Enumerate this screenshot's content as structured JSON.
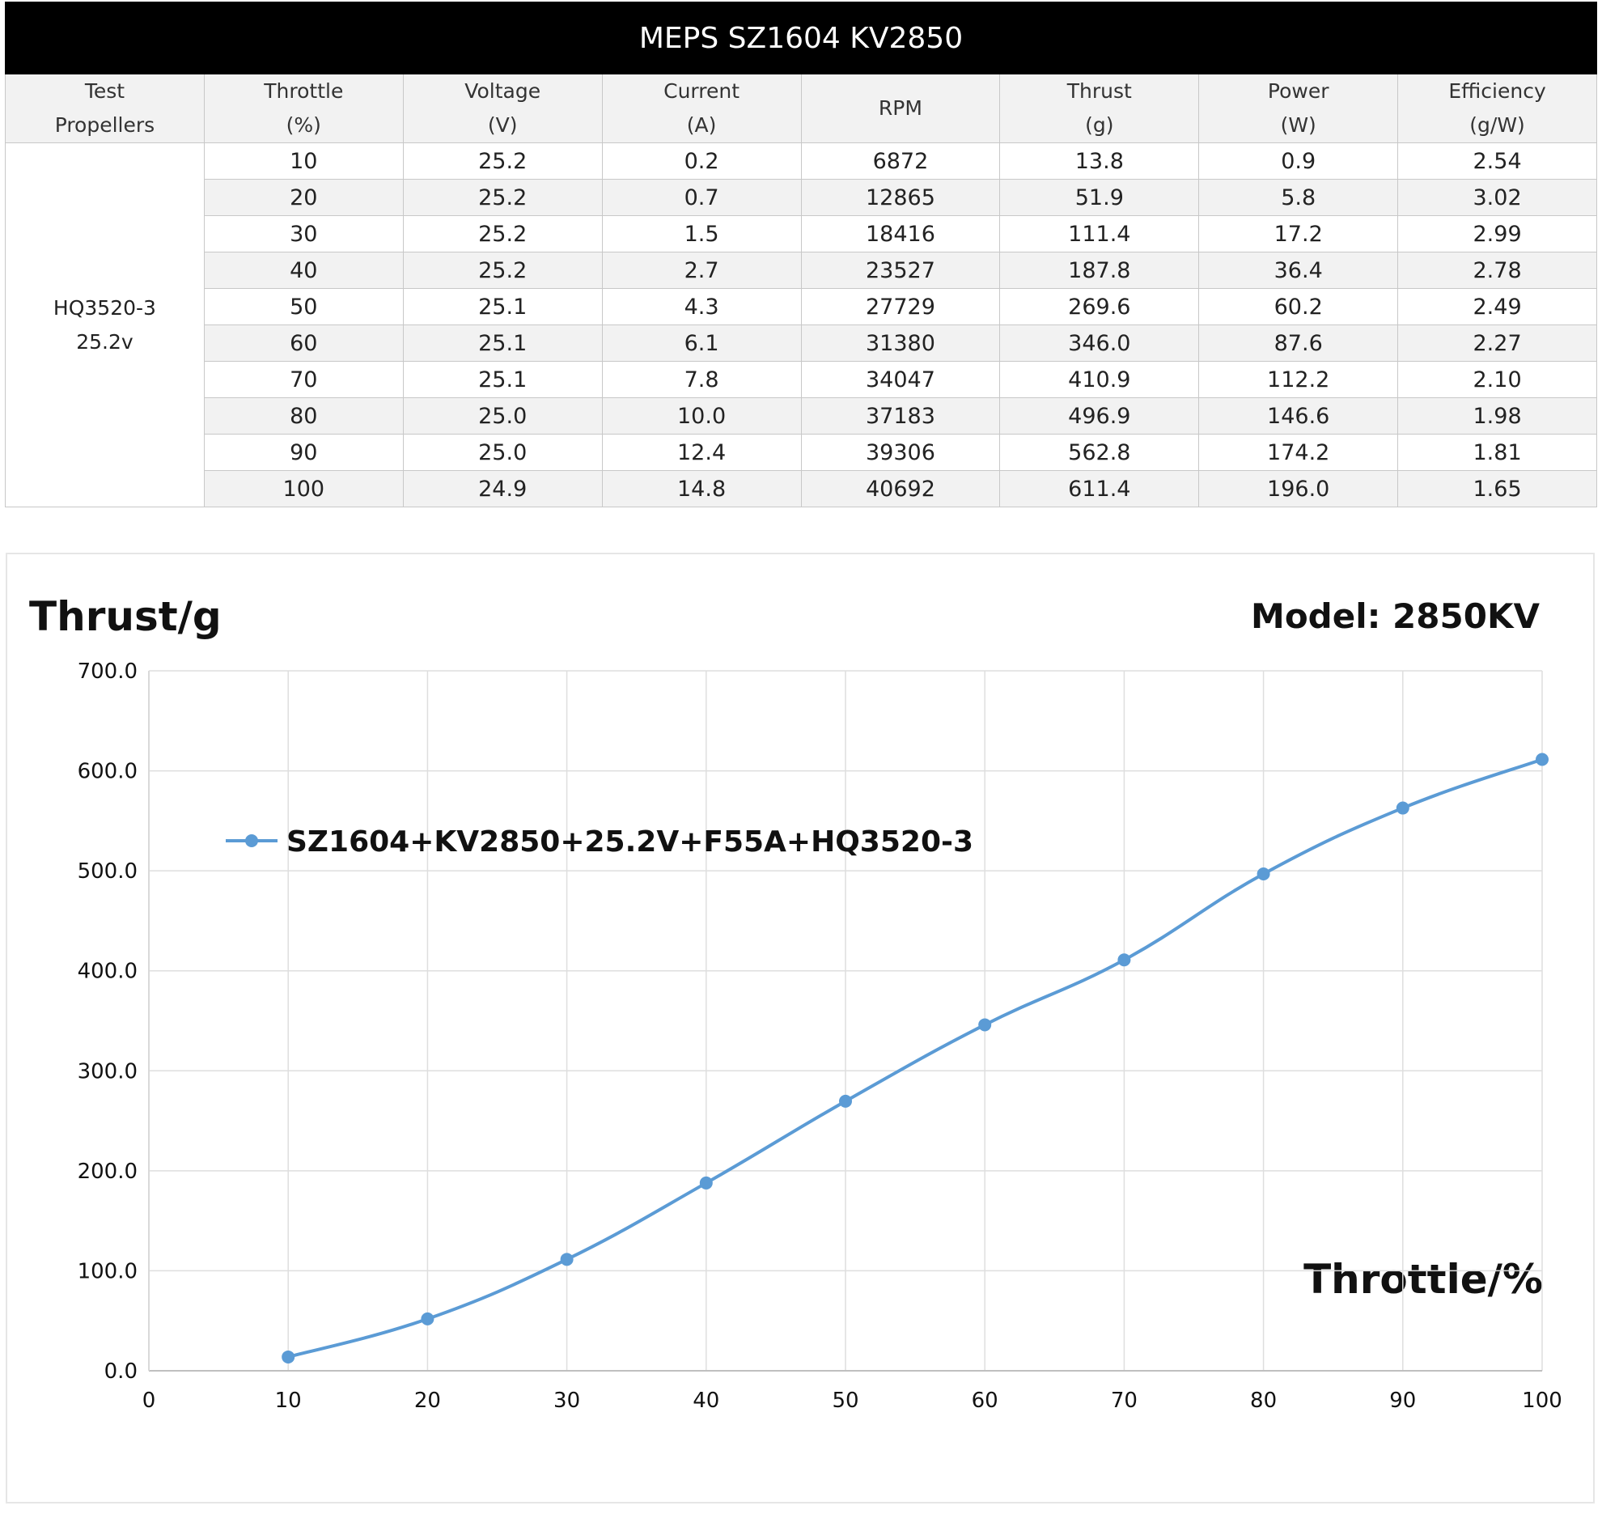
{
  "table": {
    "title": "MEPS SZ1604 KV2850",
    "headers": [
      [
        "Test",
        "Propellers"
      ],
      [
        "Throttle",
        "(%)"
      ],
      [
        "Voltage",
        "(V)"
      ],
      [
        "Current",
        "(A)"
      ],
      [
        "RPM"
      ],
      [
        "Thrust",
        "(g)"
      ],
      [
        "Power",
        "(W)"
      ],
      [
        "Efficiency",
        "(g/W)"
      ]
    ],
    "propeller": [
      "HQ3520-3",
      "25.2v"
    ],
    "rows": [
      [
        "10",
        "25.2",
        "0.2",
        "6872",
        "13.8",
        "0.9",
        "2.54"
      ],
      [
        "20",
        "25.2",
        "0.7",
        "12865",
        "51.9",
        "5.8",
        "3.02"
      ],
      [
        "30",
        "25.2",
        "1.5",
        "18416",
        "111.4",
        "17.2",
        "2.99"
      ],
      [
        "40",
        "25.2",
        "2.7",
        "23527",
        "187.8",
        "36.4",
        "2.78"
      ],
      [
        "50",
        "25.1",
        "4.3",
        "27729",
        "269.6",
        "60.2",
        "2.49"
      ],
      [
        "60",
        "25.1",
        "6.1",
        "31380",
        "346.0",
        "87.6",
        "2.27"
      ],
      [
        "70",
        "25.1",
        "7.8",
        "34047",
        "410.9",
        "112.2",
        "2.10"
      ],
      [
        "80",
        "25.0",
        "10.0",
        "37183",
        "496.9",
        "146.6",
        "1.98"
      ],
      [
        "90",
        "25.0",
        "12.4",
        "39306",
        "562.8",
        "174.2",
        "1.81"
      ],
      [
        "100",
        "24.9",
        "14.8",
        "40692",
        "611.4",
        "196.0",
        "1.65"
      ]
    ]
  },
  "chart_data": {
    "type": "line",
    "title": "",
    "ylabel": "Thrust/g",
    "xlabel": "Throttle/%",
    "model_label": "Model:  2850KV",
    "xlim": [
      0,
      100
    ],
    "ylim": [
      0,
      700
    ],
    "x_ticks": [
      "0",
      "10",
      "20",
      "30",
      "40",
      "50",
      "60",
      "70",
      "80",
      "90",
      "100"
    ],
    "y_ticks": [
      "0.0",
      "100.0",
      "200.0",
      "300.0",
      "400.0",
      "500.0",
      "600.0",
      "700.0"
    ],
    "grid": true,
    "legend_position": "upper-left",
    "x": [
      10,
      20,
      30,
      40,
      50,
      60,
      70,
      80,
      90,
      100
    ],
    "series": [
      {
        "name": "SZ1604+KV2850+25.2V+F55A+HQ3520-3",
        "color": "#5b9bd5",
        "values": [
          13.8,
          51.9,
          111.4,
          187.8,
          269.6,
          346.0,
          410.9,
          496.9,
          562.8,
          611.4
        ]
      }
    ]
  }
}
